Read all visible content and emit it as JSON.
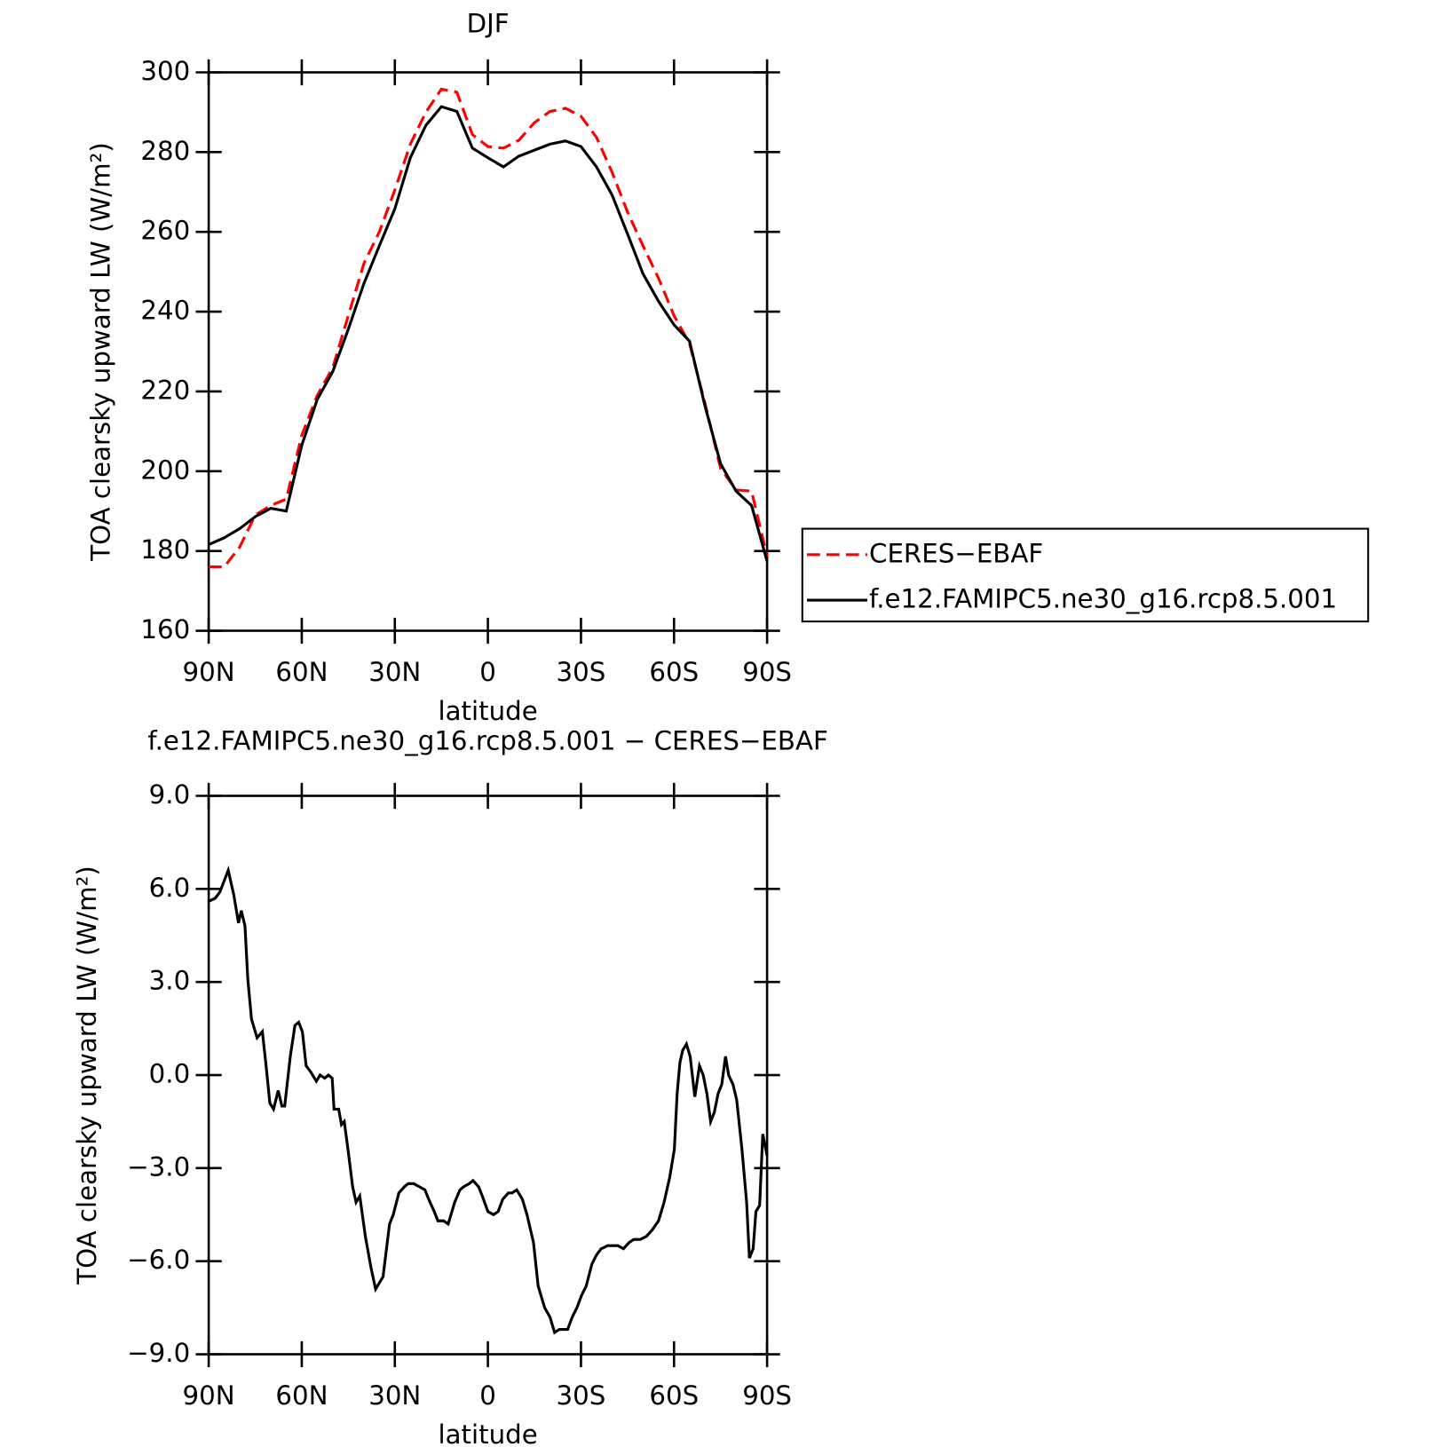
{
  "chart_data": [
    {
      "type": "line",
      "title": "DJF",
      "xlabel": "latitude",
      "ylabel": "TOA clearsky upward LW (W/m²)",
      "x": [
        90,
        85,
        80,
        75,
        70,
        65,
        60,
        55,
        50,
        45,
        40,
        35,
        30,
        25,
        20,
        15,
        10,
        5,
        0,
        -5,
        -10,
        -15,
        -20,
        -25,
        -30,
        -35,
        -40,
        -45,
        -50,
        -55,
        -60,
        -65,
        -70,
        -75,
        -80,
        -85,
        -90
      ],
      "xlim": [
        90,
        -90
      ],
      "xticks": [
        {
          "value": 90,
          "label": "90N"
        },
        {
          "value": 60,
          "label": "60N"
        },
        {
          "value": 30,
          "label": "30N"
        },
        0,
        {
          "value": -30,
          "label": "30S"
        },
        {
          "value": -60,
          "label": "60S"
        },
        {
          "value": -90,
          "label": "90S"
        }
      ],
      "ylim": [
        160,
        300
      ],
      "yticks": [
        160,
        180,
        200,
        220,
        240,
        260,
        280,
        300
      ],
      "legend": "right",
      "series": [
        {
          "name": "CERES−EBAF",
          "color": "#ff0000",
          "line_style": "dashed",
          "values": [
            176,
            176,
            181,
            189,
            191.4,
            193,
            209,
            219,
            226,
            239,
            252,
            260,
            270.5,
            282,
            290,
            295.8,
            295,
            284.4,
            281.4,
            281,
            283,
            287.4,
            290.2,
            291,
            289,
            283.7,
            275,
            265,
            256.5,
            248.4,
            239,
            232,
            217,
            200.7,
            195.3,
            195,
            178.6
          ]
        },
        {
          "name": "f.e12.FAMIPC5.ne30_g16.rcp8.5.001",
          "color": "#000000",
          "line_style": "solid",
          "values": [
            181.6,
            183.3,
            185.6,
            188.6,
            190.7,
            190,
            206.5,
            218,
            225,
            235.6,
            247,
            256.5,
            265.8,
            278.6,
            286.7,
            291.4,
            290.2,
            281,
            278.6,
            276.3,
            279,
            280.5,
            282,
            282.8,
            281.4,
            276.3,
            269.3,
            259.5,
            249.5,
            242.6,
            236.7,
            232.6,
            216.3,
            201.9,
            195,
            191.4,
            177.4
          ]
        }
      ]
    },
    {
      "type": "line",
      "title": "f.e12.FAMIPC5.ne30_g16.rcp8.5.001 − CERES−EBAF",
      "xlabel": "latitude",
      "ylabel": "TOA clearsky upward LW (W/m²)",
      "x": [
        90.0,
        87.9,
        86.4,
        83.7,
        81.9,
        80.4,
        79.5,
        78.3,
        77.4,
        76.2,
        74.4,
        72.7,
        71.5,
        70.3,
        69.1,
        67.6,
        66.4,
        65.5,
        63.7,
        62.2,
        61.0,
        59.8,
        58.6,
        57.1,
        55.3,
        54.1,
        52.6,
        51.4,
        50.2,
        49.6,
        48.1,
        47.2,
        46.3,
        45.1,
        43.6,
        42.5,
        41.3,
        39.5,
        37.7,
        36.2,
        35.0,
        33.8,
        31.7,
        30.5,
        28.7,
        26.9,
        25.7,
        23.9,
        22.1,
        20.3,
        19.1,
        17.3,
        16.1,
        14.3,
        12.8,
        10.7,
        9.0,
        7.8,
        6.0,
        4.8,
        3.0,
        1.8,
        0.0,
        -1.8,
        -3.3,
        -4.8,
        -6.6,
        -7.8,
        -9.3,
        -11.1,
        -12.6,
        -14.7,
        -16.2,
        -18.3,
        -20.0,
        -21.5,
        -23.0,
        -25.7,
        -27.2,
        -28.7,
        -30.2,
        -31.7,
        -33.5,
        -35.0,
        -36.5,
        -38.6,
        -40.1,
        -41.9,
        -43.7,
        -45.5,
        -47.0,
        -49.1,
        -51.1,
        -52.9,
        -55.0,
        -56.8,
        -58.6,
        -60.1,
        -61.0,
        -61.9,
        -62.8,
        -64.0,
        -65.2,
        -66.7,
        -68.2,
        -69.4,
        -70.6,
        -71.8,
        -73.0,
        -74.2,
        -75.4,
        -76.6,
        -77.6,
        -79.0,
        -80.2,
        -81.9,
        -83.4,
        -84.3,
        -85.5,
        -86.4,
        -87.6,
        -88.6,
        -90.0
      ],
      "xlim": [
        90,
        -90
      ],
      "xticks": [
        {
          "value": 90,
          "label": "90N"
        },
        {
          "value": 60,
          "label": "60N"
        },
        {
          "value": 30,
          "label": "30N"
        },
        0,
        {
          "value": -30,
          "label": "30S"
        },
        {
          "value": -60,
          "label": "60S"
        },
        {
          "value": -90,
          "label": "90S"
        }
      ],
      "ylim": [
        -9,
        9
      ],
      "yticks": [
        {
          "value": -9,
          "label": "−9.0"
        },
        {
          "value": -6,
          "label": "−6.0"
        },
        {
          "value": -3,
          "label": "−3.0"
        },
        {
          "value": 0,
          "label": "0.0"
        },
        {
          "value": 3,
          "label": "3.0"
        },
        {
          "value": 6,
          "label": "6.0"
        },
        {
          "value": 9,
          "label": "9.0"
        }
      ],
      "series": [
        {
          "color": "#000000",
          "line_style": "solid",
          "values": [
            5.6,
            5.7,
            5.9,
            6.6,
            5.8,
            4.9,
            5.3,
            4.8,
            3.1,
            1.8,
            1.2,
            1.4,
            0.3,
            -0.9,
            -1.1,
            -0.5,
            -1.0,
            -1.0,
            0.6,
            1.6,
            1.7,
            1.4,
            0.3,
            0.1,
            -0.2,
            0.0,
            -0.1,
            0.0,
            -0.1,
            -1.1,
            -1.1,
            -1.6,
            -1.5,
            -2.4,
            -3.6,
            -4.1,
            -3.9,
            -5.2,
            -6.2,
            -6.9,
            -6.7,
            -6.5,
            -4.8,
            -4.5,
            -3.8,
            -3.6,
            -3.5,
            -3.5,
            -3.6,
            -3.7,
            -4.0,
            -4.4,
            -4.7,
            -4.7,
            -4.8,
            -4.1,
            -3.7,
            -3.6,
            -3.5,
            -3.4,
            -3.6,
            -3.9,
            -4.4,
            -4.5,
            -4.4,
            -4.0,
            -3.8,
            -3.8,
            -3.7,
            -4.0,
            -4.5,
            -5.4,
            -6.8,
            -7.5,
            -7.8,
            -8.3,
            -8.2,
            -8.2,
            -7.8,
            -7.5,
            -7.1,
            -6.8,
            -6.1,
            -5.8,
            -5.6,
            -5.5,
            -5.5,
            -5.5,
            -5.6,
            -5.4,
            -5.3,
            -5.3,
            -5.2,
            -5.0,
            -4.7,
            -4.1,
            -3.3,
            -2.4,
            -0.6,
            0.4,
            0.8,
            1.0,
            0.6,
            -0.7,
            0.3,
            0.0,
            -0.6,
            -1.5,
            -1.2,
            -0.6,
            -0.3,
            0.6,
            0.0,
            -0.3,
            -0.8,
            -2.4,
            -4.1,
            -5.9,
            -5.6,
            -4.4,
            -4.2,
            -1.9,
            -2.6
          ]
        }
      ]
    }
  ]
}
